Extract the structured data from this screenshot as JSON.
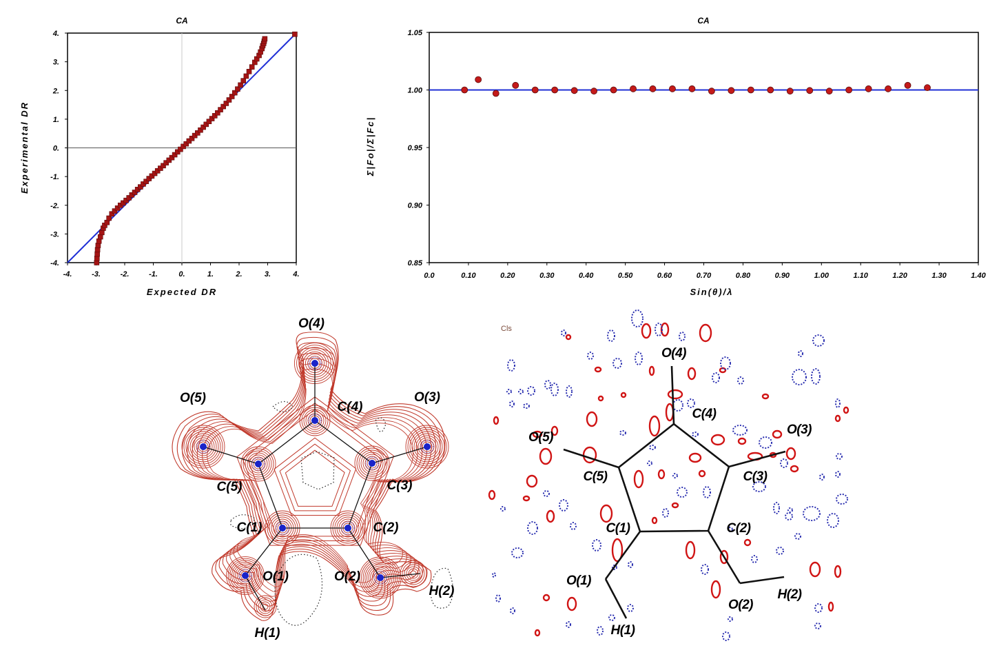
{
  "chart_data": [
    {
      "type": "scatter",
      "title": "CA",
      "xlabel": "Expected DR",
      "ylabel": "Experimental DR",
      "xlim": [
        -4,
        4
      ],
      "ylim": [
        -4,
        4
      ],
      "xticks": [
        "-4.",
        "-3.",
        "-2.",
        "-1.",
        "0.",
        "1.",
        "2.",
        "3.",
        "4."
      ],
      "yticks": [
        "4.",
        "3.",
        "2.",
        "1.",
        "0.",
        "-1.",
        "-2.",
        "-3.",
        "-4."
      ],
      "reference_line": {
        "from": [
          -4,
          -4
        ],
        "to": [
          4,
          4
        ],
        "color": "#1f2fd6"
      },
      "marker_color": "#a51414",
      "points_x": [
        -2.98,
        -2.97,
        -2.96,
        -2.95,
        -2.93,
        -2.9,
        -2.85,
        -2.8,
        -2.75,
        -2.7,
        -2.62,
        -2.55,
        -2.45,
        -2.35,
        -2.25,
        -2.15,
        -2.05,
        -1.95,
        -1.85,
        -1.75,
        -1.65,
        -1.55,
        -1.45,
        -1.35,
        -1.25,
        -1.15,
        -1.05,
        -0.95,
        -0.85,
        -0.75,
        -0.65,
        -0.55,
        -0.45,
        -0.35,
        -0.25,
        -0.15,
        -0.05,
        0.05,
        0.15,
        0.25,
        0.35,
        0.45,
        0.55,
        0.65,
        0.75,
        0.85,
        0.95,
        1.05,
        1.15,
        1.25,
        1.35,
        1.45,
        1.55,
        1.65,
        1.75,
        1.85,
        1.95,
        2.05,
        2.15,
        2.25,
        2.35,
        2.45,
        2.55,
        2.62,
        2.7,
        2.75,
        2.8,
        2.83,
        2.86,
        2.88,
        2.9,
        3.95
      ],
      "points_y": [
        -4.0,
        -3.85,
        -3.7,
        -3.55,
        -3.4,
        -3.25,
        -3.1,
        -2.95,
        -2.8,
        -2.7,
        -2.6,
        -2.45,
        -2.3,
        -2.2,
        -2.1,
        -2.0,
        -1.92,
        -1.83,
        -1.74,
        -1.64,
        -1.55,
        -1.45,
        -1.36,
        -1.26,
        -1.17,
        -1.07,
        -0.98,
        -0.89,
        -0.8,
        -0.71,
        -0.62,
        -0.52,
        -0.43,
        -0.34,
        -0.24,
        -0.14,
        -0.05,
        0.05,
        0.14,
        0.24,
        0.33,
        0.43,
        0.52,
        0.62,
        0.72,
        0.82,
        0.92,
        1.02,
        1.12,
        1.22,
        1.33,
        1.44,
        1.55,
        1.67,
        1.79,
        1.92,
        2.05,
        2.19,
        2.34,
        2.5,
        2.66,
        2.82,
        2.98,
        3.1,
        3.22,
        3.34,
        3.46,
        3.56,
        3.64,
        3.72,
        3.8,
        3.96
      ]
    },
    {
      "type": "scatter",
      "title": "CA",
      "xlabel": "Sin(θ)/λ",
      "ylabel": "Σ|Fo|/Σ|Fc|",
      "xlim": [
        0.0,
        1.4
      ],
      "ylim": [
        0.85,
        1.05
      ],
      "xticks": [
        "0.0",
        "0.10",
        "0.20",
        "0.30",
        "0.40",
        "0.50",
        "0.60",
        "0.70",
        "0.80",
        "0.90",
        "1.00",
        "1.10",
        "1.20",
        "1.30",
        "1.40"
      ],
      "yticks": [
        "1.05",
        "1.00",
        "0.95",
        "0.90",
        "0.85"
      ],
      "reference_y": 1.0,
      "reference_color": "#1f2fd6",
      "marker_color": "#c41a1a",
      "x": [
        0.09,
        0.125,
        0.17,
        0.22,
        0.27,
        0.32,
        0.37,
        0.42,
        0.47,
        0.52,
        0.57,
        0.62,
        0.67,
        0.72,
        0.77,
        0.82,
        0.87,
        0.92,
        0.97,
        1.02,
        1.07,
        1.12,
        1.17,
        1.22,
        1.27
      ],
      "y": [
        1.0,
        1.009,
        0.997,
        1.004,
        1.0,
        1.0,
        0.9995,
        0.999,
        1.0,
        1.001,
        1.001,
        1.001,
        1.001,
        0.999,
        0.9995,
        1.0,
        1.0,
        0.999,
        0.9995,
        0.999,
        1.0,
        1.001,
        1.001,
        1.004,
        1.002
      ]
    }
  ],
  "left_map": {
    "labels": {
      "o4": "O(4)",
      "c4": "C(4)",
      "o3": "O(3)",
      "o5": "O(5)",
      "c5": "C(5)",
      "c3": "C(3)",
      "c1": "C(1)",
      "c2": "C(2)",
      "o1": "O(1)",
      "o2": "O(2)",
      "h1": "H(1)",
      "h2": "H(2)"
    },
    "contour_color": "#c0392b",
    "nucleus_color": "#1a23c9"
  },
  "right_map": {
    "corner_label": "Cls",
    "labels": {
      "o4": "O(4)",
      "c4": "C(4)",
      "o5": "O(5)",
      "o3": "O(3)",
      "c5": "C(5)",
      "c3": "C(3)",
      "c1": "C(1)",
      "c2": "C(2)",
      "o1": "O(1)",
      "o2": "O(2)",
      "h1": "H(1)",
      "h2": "H(2)"
    },
    "positive_color": "#d01414",
    "negative_color": "#2a2fb0"
  }
}
